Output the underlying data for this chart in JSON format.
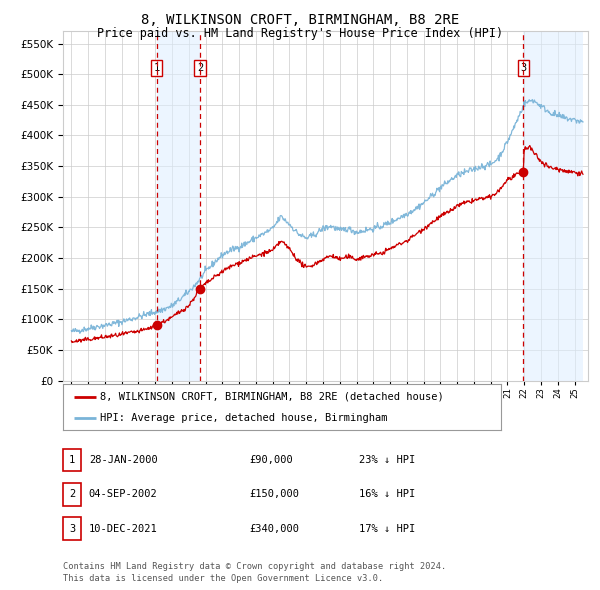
{
  "title": "8, WILKINSON CROFT, BIRMINGHAM, B8 2RE",
  "subtitle": "Price paid vs. HM Land Registry's House Price Index (HPI)",
  "title_fontsize": 10,
  "subtitle_fontsize": 8.5,
  "purchases": [
    {
      "date_num": 2000.08,
      "price": 90000,
      "label": "1"
    },
    {
      "date_num": 2002.67,
      "price": 150000,
      "label": "2"
    },
    {
      "date_num": 2021.94,
      "price": 340000,
      "label": "3"
    }
  ],
  "vline_dates": [
    2000.08,
    2002.67,
    2021.94
  ],
  "shade_ranges": [
    [
      2000.08,
      2002.67
    ],
    [
      2021.94,
      2025.5
    ]
  ],
  "hpi_color": "#7ab4d8",
  "price_color": "#cc0000",
  "ylim": [
    0,
    570000
  ],
  "yticks": [
    0,
    50000,
    100000,
    150000,
    200000,
    250000,
    300000,
    350000,
    400000,
    450000,
    500000,
    550000
  ],
  "xlim": [
    1994.5,
    2025.8
  ],
  "background_color": "#ffffff",
  "grid_color": "#cccccc",
  "shade_color": "#ddeeff",
  "legend_items": [
    "8, WILKINSON CROFT, BIRMINGHAM, B8 2RE (detached house)",
    "HPI: Average price, detached house, Birmingham"
  ],
  "table_rows": [
    {
      "label": "1",
      "date": "28-JAN-2000",
      "price": "£90,000",
      "hpi": "23% ↓ HPI"
    },
    {
      "label": "2",
      "date": "04-SEP-2002",
      "price": "£150,000",
      "hpi": "16% ↓ HPI"
    },
    {
      "label": "3",
      "date": "10-DEC-2021",
      "price": "£340,000",
      "hpi": "17% ↓ HPI"
    }
  ],
  "footer": "Contains HM Land Registry data © Crown copyright and database right 2024.\nThis data is licensed under the Open Government Licence v3.0.",
  "hpi_anchors": [
    [
      1995.0,
      80000
    ],
    [
      1995.5,
      82000
    ],
    [
      1996.0,
      85000
    ],
    [
      1996.5,
      88000
    ],
    [
      1997.0,
      90000
    ],
    [
      1997.5,
      93000
    ],
    [
      1998.0,
      96000
    ],
    [
      1998.5,
      100000
    ],
    [
      1999.0,
      104000
    ],
    [
      1999.5,
      108000
    ],
    [
      2000.0,
      112000
    ],
    [
      2000.5,
      116000
    ],
    [
      2001.0,
      122000
    ],
    [
      2001.5,
      133000
    ],
    [
      2002.0,
      145000
    ],
    [
      2002.5,
      160000
    ],
    [
      2003.0,
      178000
    ],
    [
      2003.5,
      192000
    ],
    [
      2004.0,
      205000
    ],
    [
      2004.5,
      213000
    ],
    [
      2005.0,
      218000
    ],
    [
      2005.5,
      225000
    ],
    [
      2006.0,
      233000
    ],
    [
      2006.5,
      240000
    ],
    [
      2007.0,
      248000
    ],
    [
      2007.5,
      268000
    ],
    [
      2008.0,
      255000
    ],
    [
      2008.5,
      240000
    ],
    [
      2009.0,
      232000
    ],
    [
      2009.5,
      238000
    ],
    [
      2010.0,
      248000
    ],
    [
      2010.5,
      252000
    ],
    [
      2011.0,
      245000
    ],
    [
      2011.5,
      248000
    ],
    [
      2012.0,
      242000
    ],
    [
      2012.5,
      245000
    ],
    [
      2013.0,
      248000
    ],
    [
      2013.5,
      252000
    ],
    [
      2014.0,
      258000
    ],
    [
      2014.5,
      265000
    ],
    [
      2015.0,
      272000
    ],
    [
      2015.5,
      280000
    ],
    [
      2016.0,
      290000
    ],
    [
      2016.5,
      302000
    ],
    [
      2017.0,
      315000
    ],
    [
      2017.5,
      325000
    ],
    [
      2018.0,
      335000
    ],
    [
      2018.5,
      340000
    ],
    [
      2019.0,
      345000
    ],
    [
      2019.5,
      350000
    ],
    [
      2020.0,
      352000
    ],
    [
      2020.5,
      365000
    ],
    [
      2021.0,
      390000
    ],
    [
      2021.5,
      420000
    ],
    [
      2022.0,
      452000
    ],
    [
      2022.5,
      458000
    ],
    [
      2023.0,
      448000
    ],
    [
      2023.5,
      438000
    ],
    [
      2024.0,
      432000
    ],
    [
      2024.5,
      428000
    ],
    [
      2025.0,
      425000
    ],
    [
      2025.5,
      422000
    ]
  ],
  "price_anchors": [
    [
      1995.0,
      63000
    ],
    [
      1995.5,
      65000
    ],
    [
      1996.0,
      67000
    ],
    [
      1996.5,
      69000
    ],
    [
      1997.0,
      71000
    ],
    [
      1997.5,
      73000
    ],
    [
      1998.0,
      75000
    ],
    [
      1998.5,
      78000
    ],
    [
      1999.0,
      80000
    ],
    [
      1999.5,
      84000
    ],
    [
      2000.08,
      90000
    ],
    [
      2000.5,
      96000
    ],
    [
      2001.0,
      103000
    ],
    [
      2001.5,
      113000
    ],
    [
      2002.0,
      122000
    ],
    [
      2002.67,
      150000
    ],
    [
      2003.0,
      158000
    ],
    [
      2003.5,
      168000
    ],
    [
      2004.0,
      178000
    ],
    [
      2004.5,
      186000
    ],
    [
      2005.0,
      192000
    ],
    [
      2005.5,
      198000
    ],
    [
      2006.0,
      203000
    ],
    [
      2006.5,
      208000
    ],
    [
      2007.0,
      212000
    ],
    [
      2007.5,
      228000
    ],
    [
      2008.0,
      215000
    ],
    [
      2008.5,
      196000
    ],
    [
      2009.0,
      184000
    ],
    [
      2009.5,
      190000
    ],
    [
      2010.0,
      198000
    ],
    [
      2010.5,
      204000
    ],
    [
      2011.0,
      198000
    ],
    [
      2011.5,
      202000
    ],
    [
      2012.0,
      198000
    ],
    [
      2012.5,
      202000
    ],
    [
      2013.0,
      205000
    ],
    [
      2013.5,
      208000
    ],
    [
      2014.0,
      215000
    ],
    [
      2014.5,
      222000
    ],
    [
      2015.0,
      228000
    ],
    [
      2015.5,
      238000
    ],
    [
      2016.0,
      248000
    ],
    [
      2016.5,
      258000
    ],
    [
      2017.0,
      268000
    ],
    [
      2017.5,
      275000
    ],
    [
      2018.0,
      285000
    ],
    [
      2018.5,
      290000
    ],
    [
      2019.0,
      294000
    ],
    [
      2019.5,
      297000
    ],
    [
      2020.0,
      299000
    ],
    [
      2020.5,
      310000
    ],
    [
      2021.0,
      328000
    ],
    [
      2021.94,
      340000
    ],
    [
      2022.0,
      378000
    ],
    [
      2022.3,
      382000
    ],
    [
      2022.5,
      374000
    ],
    [
      2023.0,
      358000
    ],
    [
      2023.5,
      348000
    ],
    [
      2024.0,
      345000
    ],
    [
      2024.5,
      342000
    ],
    [
      2025.0,
      340000
    ],
    [
      2025.5,
      338000
    ]
  ]
}
